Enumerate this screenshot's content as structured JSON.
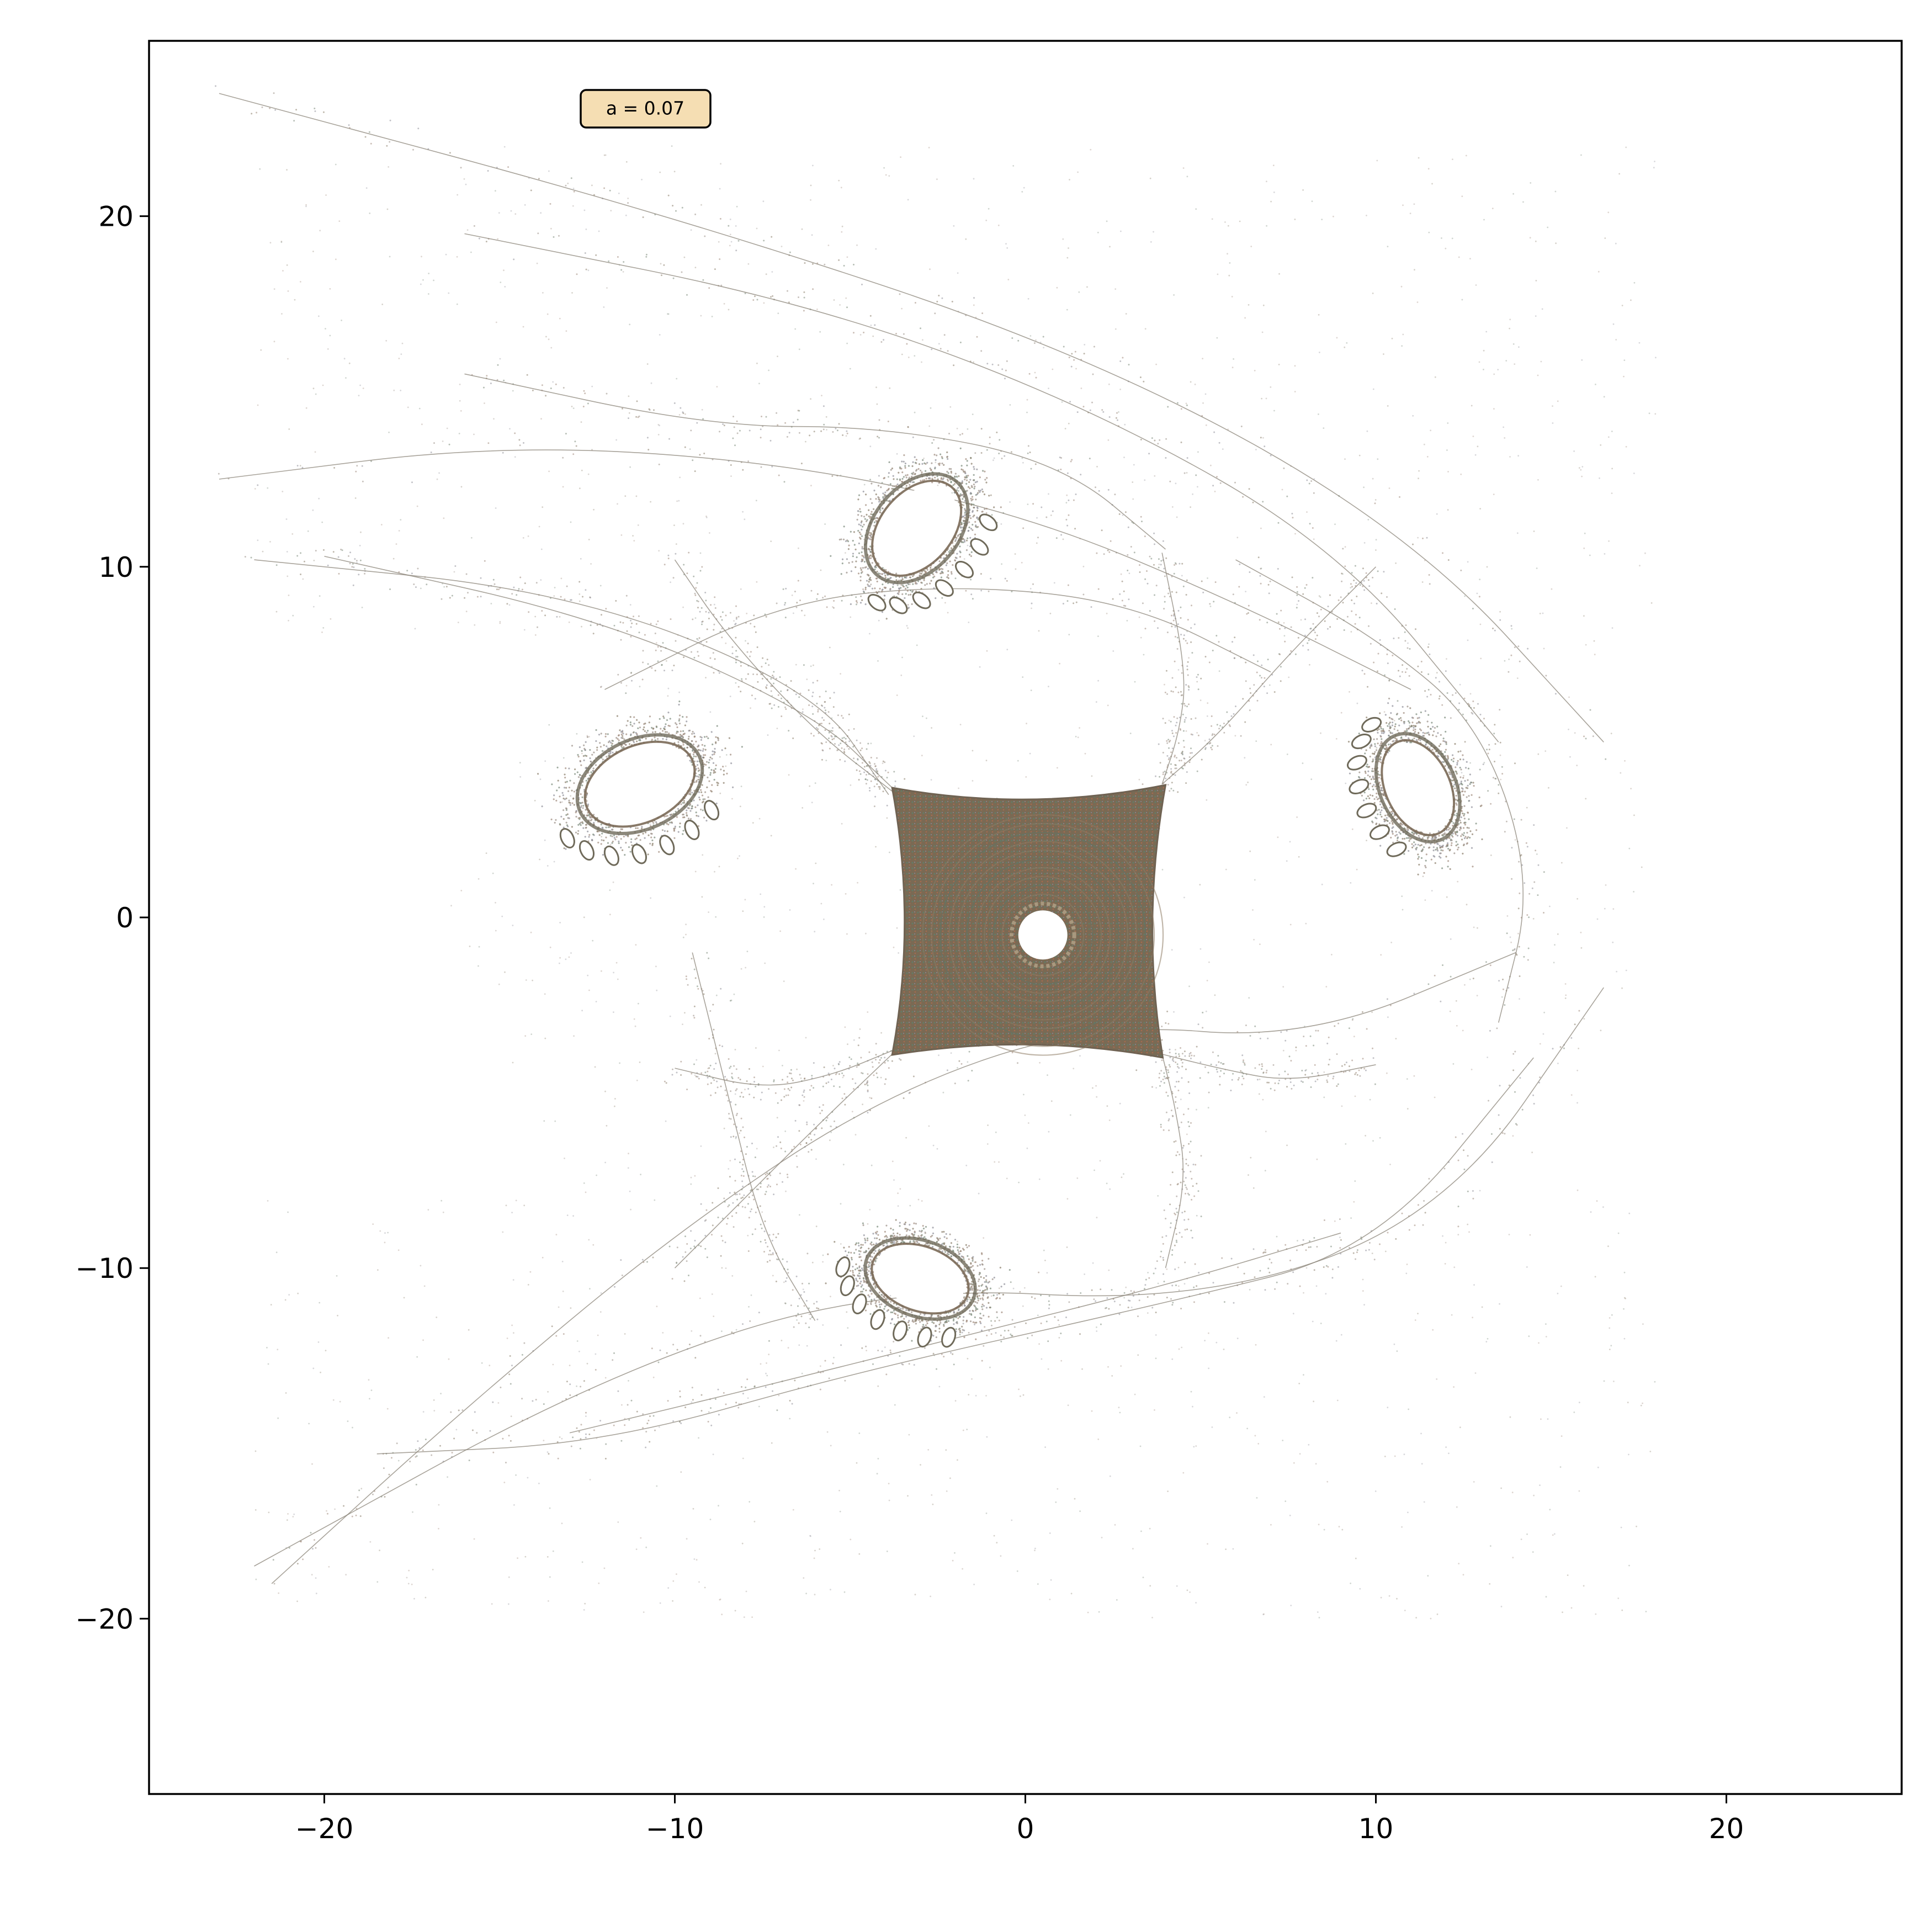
{
  "chart_data": {
    "type": "scatter",
    "title": "",
    "xlabel": "",
    "ylabel": "",
    "xlim": [
      -25,
      25
    ],
    "ylim": [
      -25,
      25
    ],
    "xticks": [
      -20,
      -10,
      0,
      10,
      20
    ],
    "yticks": [
      -20,
      -10,
      0,
      10,
      20
    ],
    "xtick_labels": [
      "−20",
      "−10",
      "0",
      "10",
      "20"
    ],
    "ytick_labels": [
      "−20",
      "−10",
      "0",
      "10",
      "20"
    ],
    "grid": false,
    "legend": "none",
    "annotation": {
      "text": "a = 0.07",
      "x": -10.8,
      "y": 23.3,
      "box_color": "#f5deb3",
      "edge_color": "#000000"
    },
    "point_color": "#6b6454",
    "core_region": {
      "shape": "rounded-square",
      "x_range": [
        -3.8,
        4
      ],
      "y_range": [
        -4,
        3.7
      ],
      "hole_center": [
        0.5,
        -0.5
      ],
      "hole_radius": 0.7,
      "fill": "#7a6a54"
    },
    "islands": [
      {
        "center": [
          -3.1,
          11.1
        ],
        "hole_rx": 1.4,
        "hole_ry": 0.9,
        "rotation_deg": 50
      },
      {
        "center": [
          -11.0,
          3.8
        ],
        "hole_rx": 1.5,
        "hole_ry": 0.95,
        "rotation_deg": 25
      },
      {
        "center": [
          11.2,
          3.7
        ],
        "hole_rx": 1.3,
        "hole_ry": 0.8,
        "rotation_deg": -65
      },
      {
        "center": [
          -3.0,
          -10.3
        ],
        "hole_rx": 1.3,
        "hole_ry": 0.8,
        "rotation_deg": -20
      }
    ],
    "filaments": [
      [
        [
          -20,
          10.3
        ],
        [
          -12,
          8.5
        ],
        [
          -6,
          5.8
        ],
        [
          -3.8,
          3.7
        ]
      ],
      [
        [
          -22,
          10.2
        ],
        [
          -13,
          9.3
        ],
        [
          -6,
          6.5
        ],
        [
          -3.9,
          3.5
        ]
      ],
      [
        [
          -10,
          10.2
        ],
        [
          -8.5,
          8
        ],
        [
          -6,
          5.3
        ],
        [
          -3.8,
          3.6
        ]
      ],
      [
        [
          10,
          10
        ],
        [
          7.5,
          7.5
        ],
        [
          5.5,
          5.2
        ],
        [
          3.9,
          3.8
        ]
      ],
      [
        [
          3.9,
          10.4
        ],
        [
          4.6,
          7
        ],
        [
          4.4,
          5.3
        ],
        [
          3.9,
          3.8
        ]
      ],
      [
        [
          -10,
          -4.3
        ],
        [
          -7.5,
          -4.9
        ],
        [
          -5.5,
          -4.5
        ],
        [
          -3.8,
          -3.8
        ]
      ],
      [
        [
          -10,
          -10
        ],
        [
          -8,
          -8
        ],
        [
          -6,
          -6
        ],
        [
          -3.8,
          -3.9
        ]
      ],
      [
        [
          10,
          -4.2
        ],
        [
          7.5,
          -4.7
        ],
        [
          5.5,
          -4.3
        ],
        [
          3.9,
          -3.9
        ]
      ],
      [
        [
          4,
          -10
        ],
        [
          4.6,
          -7.5
        ],
        [
          4.3,
          -5.5
        ],
        [
          3.9,
          -3.9
        ]
      ],
      [
        [
          -23,
          12.5
        ],
        [
          -15,
          13.5
        ],
        [
          -7,
          13
        ],
        [
          0,
          11.5
        ],
        [
          6,
          9
        ],
        [
          11,
          6.5
        ]
      ],
      [
        [
          -16,
          19.5
        ],
        [
          -6,
          17.5
        ],
        [
          2,
          14.5
        ],
        [
          9,
          10.5
        ],
        [
          13.5,
          5
        ]
      ],
      [
        [
          -23,
          23.5
        ],
        [
          -10,
          20
        ],
        [
          2,
          16
        ],
        [
          11,
          11
        ],
        [
          16.5,
          5
        ]
      ],
      [
        [
          -21.5,
          -19
        ],
        [
          -16,
          -14
        ],
        [
          -10,
          -9
        ],
        [
          -4,
          -5
        ],
        [
          2,
          -3
        ],
        [
          8,
          -3.5
        ],
        [
          14,
          -1
        ]
      ],
      [
        [
          -18.5,
          -15.3
        ],
        [
          -12,
          -15
        ],
        [
          -5,
          -13
        ],
        [
          4,
          -11
        ],
        [
          10,
          -9.5
        ],
        [
          14.5,
          -4
        ]
      ],
      [
        [
          -22,
          -18.5
        ],
        [
          -12,
          -13
        ],
        [
          -4,
          -10.5
        ],
        [
          5,
          -11
        ],
        [
          12,
          -8.5
        ],
        [
          16.5,
          -2
        ]
      ],
      [
        [
          -13,
          -14.7
        ],
        [
          -8,
          -13.5
        ],
        [
          -2,
          -12
        ],
        [
          4,
          -10.5
        ],
        [
          9,
          -9
        ]
      ],
      [
        [
          -9.5,
          -1
        ],
        [
          -8.5,
          -5
        ],
        [
          -7.5,
          -9
        ],
        [
          -6,
          -11.5
        ]
      ],
      [
        [
          -12,
          6.5
        ],
        [
          -7,
          9
        ],
        [
          -2,
          9.5
        ],
        [
          3,
          9
        ],
        [
          7,
          7
        ]
      ],
      [
        [
          -16,
          15.5
        ],
        [
          -9,
          14
        ],
        [
          -4,
          14
        ],
        [
          1,
          13
        ],
        [
          4,
          10.5
        ]
      ],
      [
        [
          6,
          10.2
        ],
        [
          10,
          8
        ],
        [
          13,
          5.5
        ],
        [
          14.5,
          1
        ],
        [
          13.5,
          -3
        ]
      ]
    ]
  }
}
